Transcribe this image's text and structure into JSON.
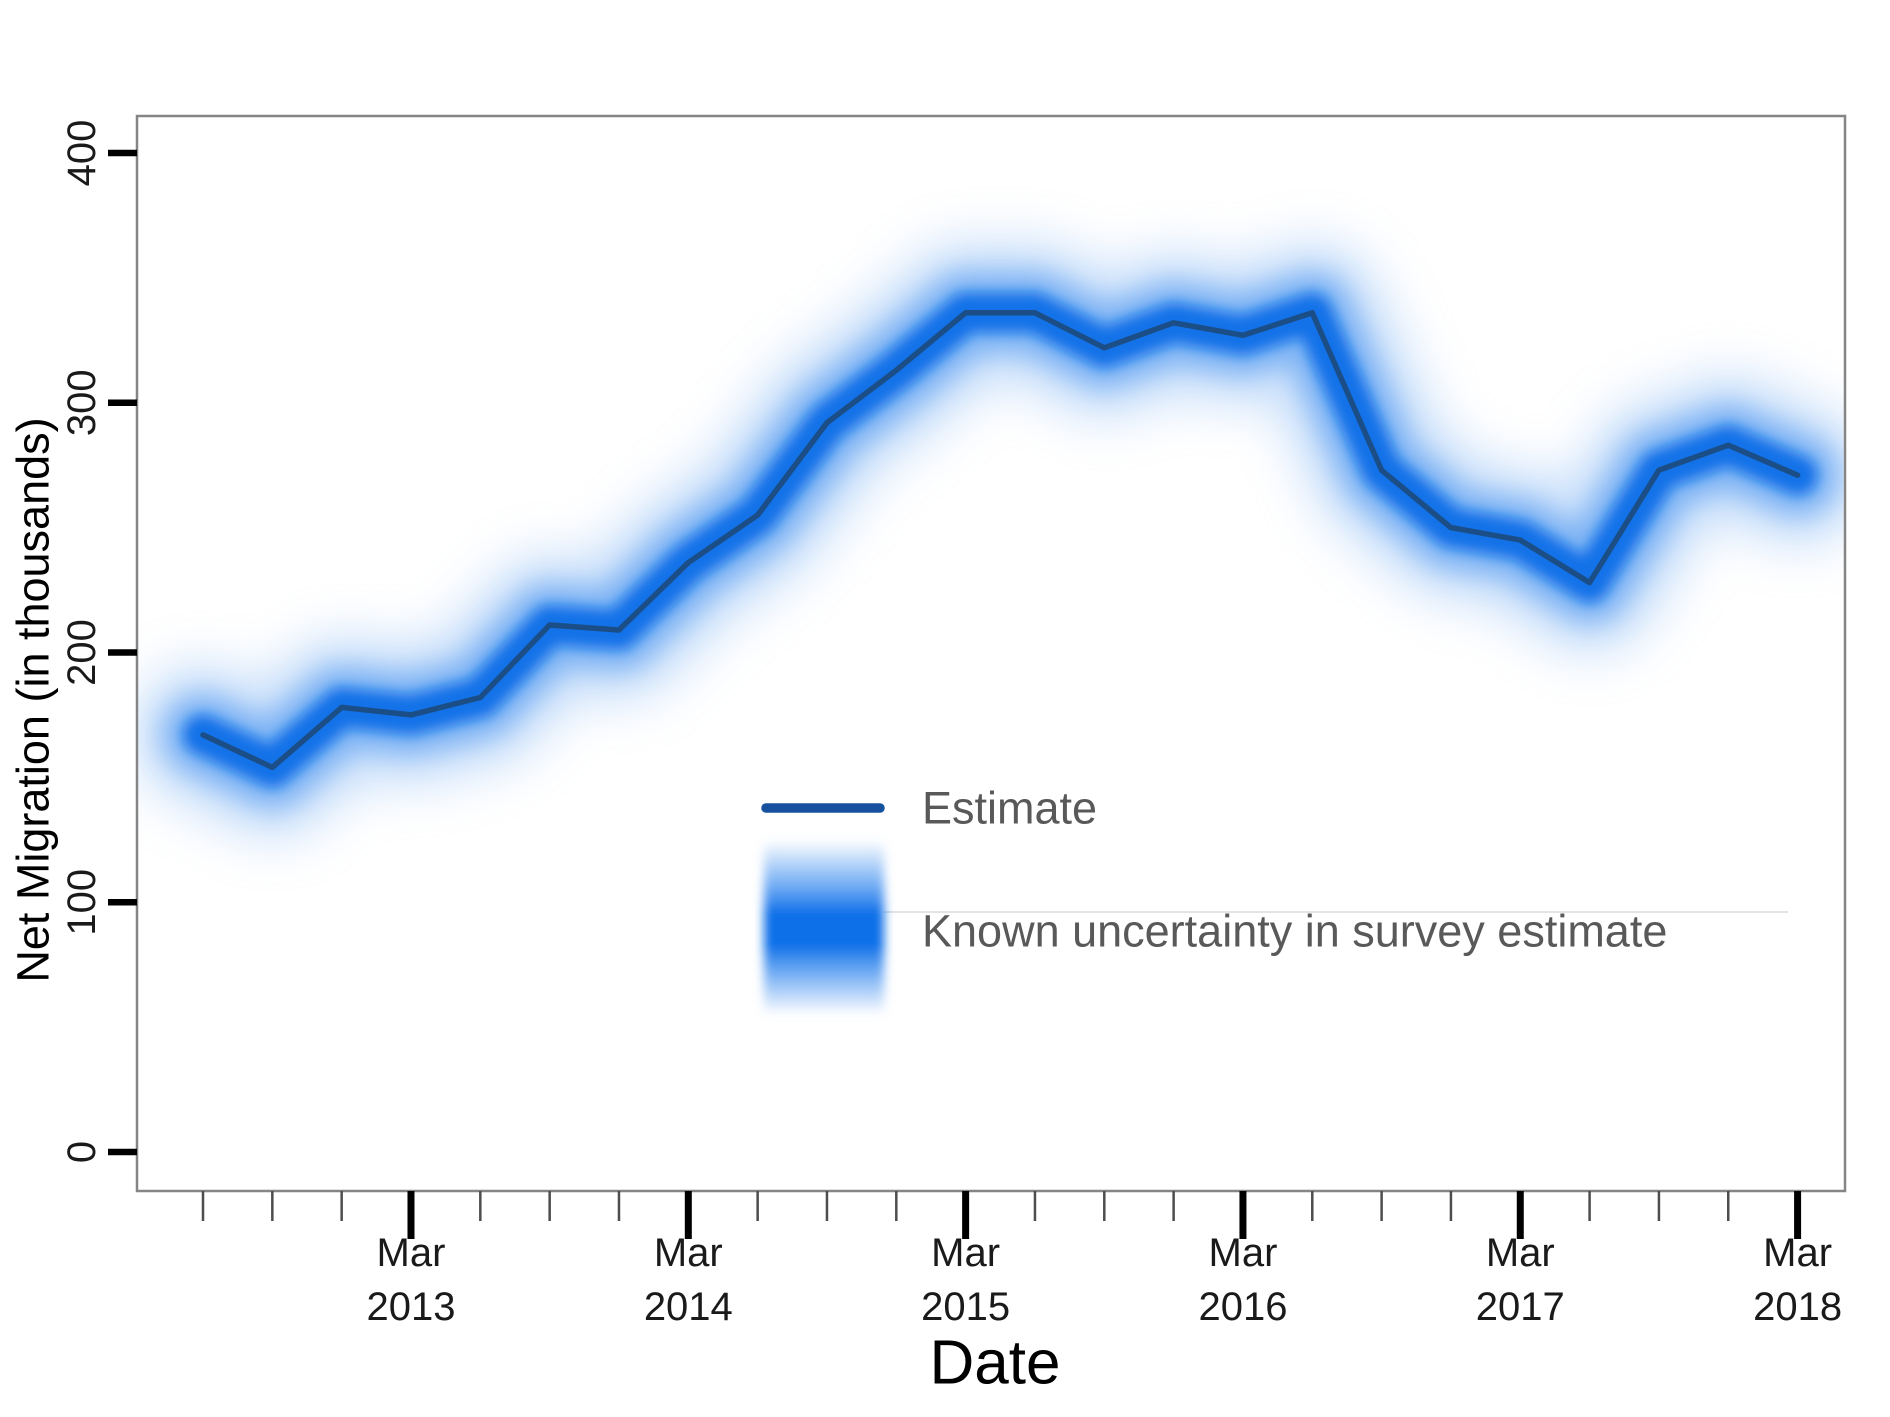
{
  "chart_data": {
    "type": "line",
    "title": "",
    "xlabel": "Date",
    "ylabel": "Net Migration (in thousands)",
    "x": [
      "Jun 2012",
      "Sep 2012",
      "Dec 2012",
      "Mar 2013",
      "Jun 2013",
      "Sep 2013",
      "Dec 2013",
      "Mar 2014",
      "Jun 2014",
      "Sep 2014",
      "Dec 2014",
      "Mar 2015",
      "Jun 2015",
      "Sep 2015",
      "Dec 2015",
      "Mar 2016",
      "Jun 2016",
      "Sep 2016",
      "Dec 2016",
      "Mar 2017",
      "Jun 2017",
      "Sep 2017",
      "Dec 2017",
      "Mar 2018"
    ],
    "series": [
      {
        "name": "Estimate",
        "values": [
          167,
          154,
          178,
          175,
          182,
          211,
          209,
          236,
          255,
          292,
          313,
          336,
          336,
          322,
          332,
          327,
          336,
          273,
          250,
          245,
          228,
          273,
          283,
          271
        ]
      }
    ],
    "uncertainty_band": {
      "description": "fuzzy blurred band centred on the estimate line, dense core fading outwards",
      "approx_half_width_core_thousands": 16,
      "approx_half_width_outer_thousands": 45
    },
    "ylim": [
      0,
      430
    ],
    "y_ticks": [
      "0",
      "100",
      "200",
      "300",
      "400"
    ],
    "x_major_ticks": [
      {
        "index": 3,
        "month": "Mar",
        "year": "2013"
      },
      {
        "index": 7,
        "month": "Mar",
        "year": "2014"
      },
      {
        "index": 11,
        "month": "Mar",
        "year": "2015"
      },
      {
        "index": 15,
        "month": "Mar",
        "year": "2016"
      },
      {
        "index": 19,
        "month": "Mar",
        "year": "2017"
      },
      {
        "index": 23,
        "month": "Mar",
        "year": "2018"
      }
    ],
    "grid": "off",
    "legend_position": "inside plot, centre",
    "legend_entries": [
      {
        "label": "Estimate",
        "swatch": "line"
      },
      {
        "label": "Known uncertainty in survey estimate",
        "swatch": "gradient-band"
      }
    ],
    "colors": {
      "estimate_line": "#1b4e86",
      "legend_line_swatch": "#15519c",
      "band_core": "#0d6fe8",
      "band_mid": "#4f98f1",
      "band_outer": "#9cc4f6",
      "axis_border": "#858585",
      "tick": "#000000",
      "tick_label": "#1a1a1a",
      "legend_text": "#595959",
      "background": "#ffffff"
    }
  }
}
